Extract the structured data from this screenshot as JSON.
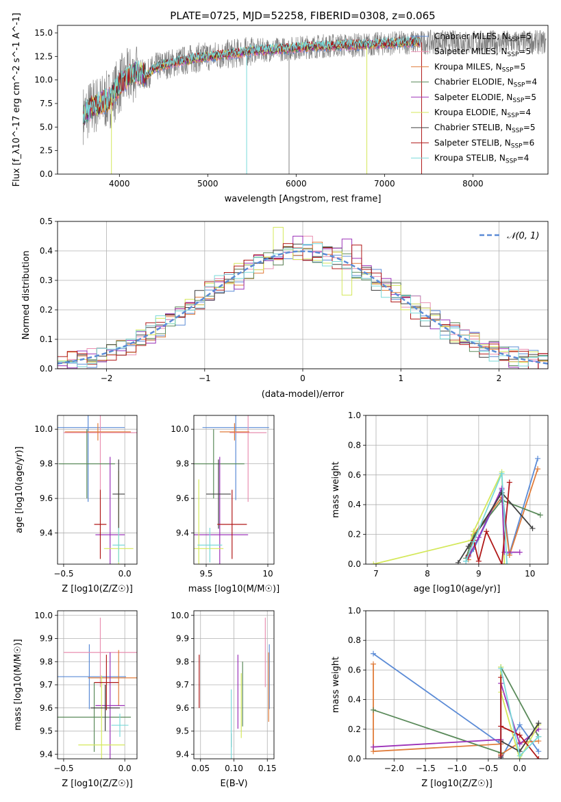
{
  "colors": {
    "gray": "#808080",
    "grid": "#b0b0b0",
    "blue": "#5b8bd6",
    "pink": "#e98fb1",
    "orange": "#e07b39",
    "green": "#5a8a5a",
    "purple": "#9b30b8",
    "yellow": "#d4e85a",
    "dark": "#404040",
    "red": "#b01818",
    "cyan": "#79d9d9"
  },
  "chart_data": [
    {
      "type": "line",
      "title": "PLATE=0725, MJD=52258, FIBERID=0308, z=0.065",
      "xlabel": "wavelength [Angstrom, rest frame]",
      "ylabel": "Flux [f_λ10^-17 erg cm^-2 s^-1 A^-1]",
      "xlim": [
        3300,
        8850
      ],
      "ylim": [
        0,
        15.8
      ],
      "xticks": [
        4000,
        5000,
        6000,
        7000,
        8000
      ],
      "yticks": [
        0.0,
        2.5,
        5.0,
        7.5,
        10.0,
        12.5,
        15.0
      ],
      "legend_position": "right",
      "legend": [
        {
          "label": "Chabrier MILES, N",
          "sub": "SSP",
          "tail": "=5",
          "color": "blue"
        },
        {
          "label": "Salpeter MILES, N",
          "sub": "SSP",
          "tail": "=5",
          "color": "pink"
        },
        {
          "label": "Kroupa MILES, N",
          "sub": "SSP",
          "tail": "=5",
          "color": "orange"
        },
        {
          "label": "Chabrier ELODIE, N",
          "sub": "SSP",
          "tail": "=4",
          "color": "green"
        },
        {
          "label": "Salpeter ELODIE, N",
          "sub": "SSP",
          "tail": "=5",
          "color": "purple"
        },
        {
          "label": "Kroupa ELODIE, N",
          "sub": "SSP",
          "tail": "=4",
          "color": "yellow"
        },
        {
          "label": "Chabrier STELIB, N",
          "sub": "SSP",
          "tail": "=5",
          "color": "dark"
        },
        {
          "label": "Salpeter STELIB, N",
          "sub": "SSP",
          "tail": "=6",
          "color": "red"
        },
        {
          "label": "Kroupa STELIB, N",
          "sub": "SSP",
          "tail": "=4",
          "color": "cyan"
        }
      ],
      "continuum_x": [
        3600,
        3700,
        3800,
        3900,
        4000,
        4100,
        4200,
        4300,
        4400,
        4500,
        4700,
        4900,
        5100,
        5300,
        5500,
        5700,
        5900,
        6100,
        6300,
        6500,
        6700,
        6900,
        7100,
        7300,
        7400
      ],
      "continuum_y": [
        6.3,
        7.2,
        7.6,
        8.0,
        9.5,
        10.3,
        10.9,
        10.4,
        11.3,
        11.6,
        12.0,
        12.4,
        12.6,
        12.8,
        13.1,
        13.2,
        13.3,
        13.5,
        13.6,
        13.7,
        13.7,
        13.8,
        13.9,
        14.0,
        14.0
      ],
      "x_range_observed": [
        3590,
        8830
      ],
      "model_x_range": [
        3590,
        7400
      ],
      "spikes": [
        {
          "x": 3910,
          "y": 0.0,
          "color": "yellow"
        },
        {
          "x": 5440,
          "y": 0.0,
          "color": "cyan"
        },
        {
          "x": 5920,
          "y": 0.0,
          "color": "gray"
        },
        {
          "x": 6800,
          "y": 0.0,
          "color": "yellow"
        },
        {
          "x": 7420,
          "y": 0.0,
          "color": "red"
        }
      ]
    },
    {
      "type": "histogram",
      "xlabel": "(data-model)/error",
      "ylabel": "Normed distribution",
      "xlim": [
        -2.5,
        2.5
      ],
      "ylim": [
        0,
        0.5
      ],
      "xticks": [
        -2,
        -1,
        0,
        1,
        2
      ],
      "xticklabels": [
        "−2",
        "−1",
        "0",
        "1",
        "2"
      ],
      "yticks": [
        0.0,
        0.1,
        0.2,
        0.3,
        0.4,
        0.5
      ],
      "legend_position": "top-right",
      "legend": [
        {
          "label": "𝒩(0, 1)",
          "color": "blue"
        }
      ],
      "bin_width": 0.1,
      "series_colors": [
        "blue",
        "pink",
        "orange",
        "green",
        "purple",
        "yellow",
        "dark",
        "red",
        "cyan"
      ],
      "highlights": [
        {
          "bin_left": -0.3,
          "value": 0.48,
          "color": "yellow"
        },
        {
          "bin_left": -0.1,
          "value": 0.45,
          "color": "purple"
        },
        {
          "bin_left": 0.0,
          "value": 0.45,
          "color": "pink"
        },
        {
          "bin_left": 0.4,
          "value": 0.44,
          "color": "purple"
        },
        {
          "bin_left": 0.5,
          "value": 0.42,
          "color": "red"
        },
        {
          "bin_left": 0.4,
          "value": 0.25,
          "color": "yellow"
        },
        {
          "bin_left": -0.7,
          "value": 0.27,
          "color": "purple"
        },
        {
          "bin_left": -1.0,
          "value": 0.29,
          "color": "yellow"
        }
      ]
    },
    {
      "type": "errorbar",
      "xlabel": "Z [log10(Z/Z☉)]",
      "ylabel": "age  [log10(age/yr)]",
      "xlim": [
        -0.55,
        0.1
      ],
      "ylim": [
        9.22,
        10.08
      ],
      "xticks": [
        -0.5,
        0.0
      ],
      "xticklabels": [
        "−0.5",
        "0.0"
      ],
      "yticks": [
        9.4,
        9.6,
        9.8,
        10.0
      ],
      "points": [
        {
          "x": -0.3,
          "xerr": 0.3,
          "y": 10.01,
          "yerr": 0.43,
          "color": "blue"
        },
        {
          "x": -0.2,
          "xerr": 0.3,
          "y": 9.98,
          "yerr": 0.33,
          "color": "pink"
        },
        {
          "x": -0.22,
          "xerr": 0.27,
          "y": 9.985,
          "yerr": 0.05,
          "color": "orange"
        },
        {
          "x": -0.31,
          "xerr": 0.23,
          "y": 9.8,
          "yerr": 0.2,
          "color": "green"
        },
        {
          "x": -0.12,
          "xerr": 0.12,
          "y": 9.39,
          "yerr": 0.45,
          "color": "purple"
        },
        {
          "x": -0.05,
          "xerr": 0.12,
          "y": 9.31,
          "yerr": 0.45,
          "color": "yellow"
        },
        {
          "x": -0.05,
          "xerr": 0.05,
          "y": 9.625,
          "yerr": 0.2,
          "color": "dark"
        },
        {
          "x": -0.2,
          "xerr": 0.05,
          "y": 9.45,
          "yerr": 0.2,
          "color": "red"
        },
        {
          "x": -0.05,
          "xerr": 0.05,
          "y": 9.33,
          "yerr": 0.1,
          "color": "cyan"
        }
      ]
    },
    {
      "type": "errorbar",
      "xlabel": "mass [log10(M/M☉)]",
      "xlim": [
        9.4,
        10.05
      ],
      "ylim": [
        9.22,
        10.08
      ],
      "xticks": [
        9.5,
        10.0
      ],
      "yticks": [
        9.4,
        9.6,
        9.8,
        10.0
      ],
      "points": [
        {
          "x": 9.74,
          "xerr": 0.27,
          "y": 10.01,
          "yerr": 0.42,
          "color": "blue"
        },
        {
          "x": 9.84,
          "xerr": 0.15,
          "y": 9.98,
          "yerr": 0.4,
          "color": "pink"
        },
        {
          "x": 9.73,
          "xerr": 0.12,
          "y": 9.985,
          "yerr": 0.05,
          "color": "orange"
        },
        {
          "x": 9.56,
          "xerr": 0.25,
          "y": 9.8,
          "yerr": 0.2,
          "color": "green"
        },
        {
          "x": 9.61,
          "xerr": 0.23,
          "y": 9.39,
          "yerr": 0.45,
          "color": "purple"
        },
        {
          "x": 9.44,
          "xerr": 0.2,
          "y": 9.31,
          "yerr": 0.4,
          "color": "yellow"
        },
        {
          "x": 9.6,
          "xerr": 0.1,
          "y": 9.625,
          "yerr": 0.2,
          "color": "dark"
        },
        {
          "x": 9.71,
          "xerr": 0.12,
          "y": 9.45,
          "yerr": 0.2,
          "color": "red"
        },
        {
          "x": 9.53,
          "xerr": 0.1,
          "y": 9.33,
          "yerr": 0.1,
          "color": "cyan"
        }
      ]
    },
    {
      "type": "line",
      "xlabel": "age  [log10(age/yr)]",
      "ylabel": "mass weight",
      "xlim": [
        6.8,
        10.35
      ],
      "ylim": [
        0,
        1.0
      ],
      "xticks": [
        7,
        8,
        9,
        10
      ],
      "yticks": [
        0.0,
        0.2,
        0.4,
        0.6,
        0.8,
        1.0
      ],
      "series": [
        {
          "color": "blue",
          "x": [
            8.75,
            8.9,
            9.45,
            9.6,
            10.15
          ],
          "y": [
            0.02,
            0.1,
            0.5,
            0.07,
            0.71
          ]
        },
        {
          "color": "orange",
          "x": [
            8.8,
            8.9,
            9.45,
            9.6,
            10.15
          ],
          "y": [
            0.03,
            0.2,
            0.45,
            0.06,
            0.64
          ]
        },
        {
          "color": "green",
          "x": [
            8.75,
            8.9,
            9.45,
            10.2
          ],
          "y": [
            0.04,
            0.19,
            0.43,
            0.33
          ]
        },
        {
          "color": "yellow",
          "x": [
            6.95,
            8.85,
            8.9,
            9.45,
            9.5
          ],
          "y": [
            0.0,
            0.16,
            0.22,
            0.62,
            0.0
          ]
        },
        {
          "color": "purple",
          "x": [
            8.8,
            9.0,
            9.45,
            9.5,
            9.8
          ],
          "y": [
            0.05,
            0.18,
            0.51,
            0.08,
            0.08
          ]
        },
        {
          "color": "dark",
          "x": [
            8.6,
            8.8,
            9.45,
            10.05
          ],
          "y": [
            0.01,
            0.12,
            0.48,
            0.24
          ]
        },
        {
          "color": "red",
          "x": [
            8.8,
            8.9,
            9.0,
            9.15,
            9.45,
            9.6
          ],
          "y": [
            0.06,
            0.16,
            0.02,
            0.22,
            0.0,
            0.55
          ]
        },
        {
          "color": "cyan",
          "x": [
            8.75,
            8.9,
            9.45,
            9.55
          ],
          "y": [
            0.02,
            0.15,
            0.61,
            0.0
          ]
        }
      ]
    },
    {
      "type": "errorbar",
      "xlabel": "Z [log10(Z/Z☉)]",
      "ylabel": "mass [log10(M/M☉)]",
      "xlim": [
        -0.55,
        0.1
      ],
      "ylim": [
        9.38,
        10.02
      ],
      "xticks": [
        -0.5,
        0.0
      ],
      "xticklabels": [
        "−0.5",
        "0.0"
      ],
      "yticks": [
        9.4,
        9.5,
        9.6,
        9.7,
        9.8,
        9.9,
        10.0
      ],
      "points": [
        {
          "x": -0.29,
          "xerr": 0.3,
          "y": 9.735,
          "yerr": 0.14,
          "color": "blue"
        },
        {
          "x": -0.2,
          "xerr": 0.3,
          "y": 9.84,
          "yerr": 0.15,
          "color": "pink"
        },
        {
          "x": -0.05,
          "xerr": 0.25,
          "y": 9.73,
          "yerr": 0.12,
          "color": "orange"
        },
        {
          "x": -0.25,
          "xerr": 0.3,
          "y": 9.56,
          "yerr": 0.15,
          "color": "green"
        },
        {
          "x": -0.12,
          "xerr": 0.12,
          "y": 9.61,
          "yerr": 0.23,
          "color": "purple"
        },
        {
          "x": -0.19,
          "xerr": 0.19,
          "y": 9.44,
          "yerr": 0.3,
          "color": "yellow"
        },
        {
          "x": -0.16,
          "xerr": 0.12,
          "y": 9.6,
          "yerr": 0.1,
          "color": "dark"
        },
        {
          "x": -0.15,
          "xerr": 0.1,
          "y": 9.71,
          "yerr": 0.12,
          "color": "red"
        },
        {
          "x": -0.04,
          "xerr": 0.07,
          "y": 9.525,
          "yerr": 0.05,
          "color": "cyan"
        }
      ]
    },
    {
      "type": "errorbar",
      "xlabel": "E(B-V)",
      "xlim": [
        0.04,
        0.16
      ],
      "ylim": [
        9.38,
        10.02
      ],
      "xticks": [
        0.05,
        0.1,
        0.15
      ],
      "xticklabels": [
        "0.05",
        "0.10",
        "0.15"
      ],
      "yticks": [
        9.4,
        9.5,
        9.6,
        9.7,
        9.8,
        9.9,
        10.0
      ],
      "points": [
        {
          "x": 0.153,
          "xerr": 0,
          "y": 9.735,
          "yerr": 0.14,
          "color": "blue"
        },
        {
          "x": 0.147,
          "xerr": 0,
          "y": 9.84,
          "yerr": 0.15,
          "color": "pink"
        },
        {
          "x": 0.152,
          "xerr": 0,
          "y": 9.69,
          "yerr": 0.15,
          "color": "orange"
        },
        {
          "x": 0.113,
          "xerr": 0,
          "y": 9.66,
          "yerr": 0.14,
          "color": "green"
        },
        {
          "x": 0.106,
          "xerr": 0,
          "y": 9.67,
          "yerr": 0.16,
          "color": "purple"
        },
        {
          "x": 0.111,
          "xerr": 0,
          "y": 9.61,
          "yerr": 0.14,
          "color": "yellow"
        },
        {
          "x": 0.096,
          "xerr": 0,
          "y": 9.46,
          "yerr": 0.03,
          "color": "dark"
        },
        {
          "x": 0.048,
          "xerr": 0,
          "y": 9.715,
          "yerr": 0.115,
          "color": "red"
        },
        {
          "x": 0.096,
          "xerr": 0,
          "y": 9.52,
          "yerr": 0.16,
          "color": "cyan"
        }
      ]
    },
    {
      "type": "line",
      "xlabel": "Z [log10(Z/Z☉)]",
      "ylabel": "mass weight",
      "xlim": [
        -2.45,
        0.45
      ],
      "ylim": [
        0,
        1.0
      ],
      "xticks": [
        -2.0,
        -1.5,
        -1.0,
        -0.5,
        0.0
      ],
      "xticklabels": [
        "−2.0",
        "−1.5",
        "−1.0",
        "−0.5",
        "0.0"
      ],
      "yticks": [
        0.0,
        0.2,
        0.4,
        0.6,
        0.8,
        1.0
      ],
      "series": [
        {
          "color": "blue",
          "x": [
            -2.33,
            -0.3,
            -0.3,
            0.0,
            0.3
          ],
          "y": [
            0.71,
            0.1,
            0.0,
            0.23,
            0.05
          ]
        },
        {
          "color": "orange",
          "x": [
            -2.33,
            -2.33,
            -0.3,
            -0.3,
            0.0,
            0.3
          ],
          "y": [
            0.64,
            0.05,
            0.1,
            0.03,
            0.11,
            0.12
          ]
        },
        {
          "color": "green",
          "x": [
            -2.33,
            -0.3,
            -0.3,
            0.3
          ],
          "y": [
            0.33,
            0.04,
            0.62,
            0.15
          ]
        },
        {
          "color": "purple",
          "x": [
            -2.33,
            -0.3,
            -0.3,
            0.0,
            0.3
          ],
          "y": [
            0.08,
            0.13,
            0.51,
            0.1,
            0.2
          ]
        },
        {
          "color": "yellow",
          "x": [
            -0.3,
            -0.3,
            0.0,
            0.3
          ],
          "y": [
            0.62,
            0.45,
            0.0,
            0.23
          ]
        },
        {
          "color": "dark",
          "x": [
            -0.3,
            -0.3,
            0.0,
            0.3
          ],
          "y": [
            0.01,
            0.12,
            0.05,
            0.24
          ]
        },
        {
          "color": "red",
          "x": [
            -0.3,
            -0.3,
            -0.3,
            0.0,
            0.3
          ],
          "y": [
            0.55,
            0.02,
            0.22,
            0.16,
            0.0
          ]
        },
        {
          "color": "cyan",
          "x": [
            -0.3,
            0.0,
            0.3
          ],
          "y": [
            0.61,
            0.02,
            0.15
          ]
        }
      ]
    }
  ]
}
